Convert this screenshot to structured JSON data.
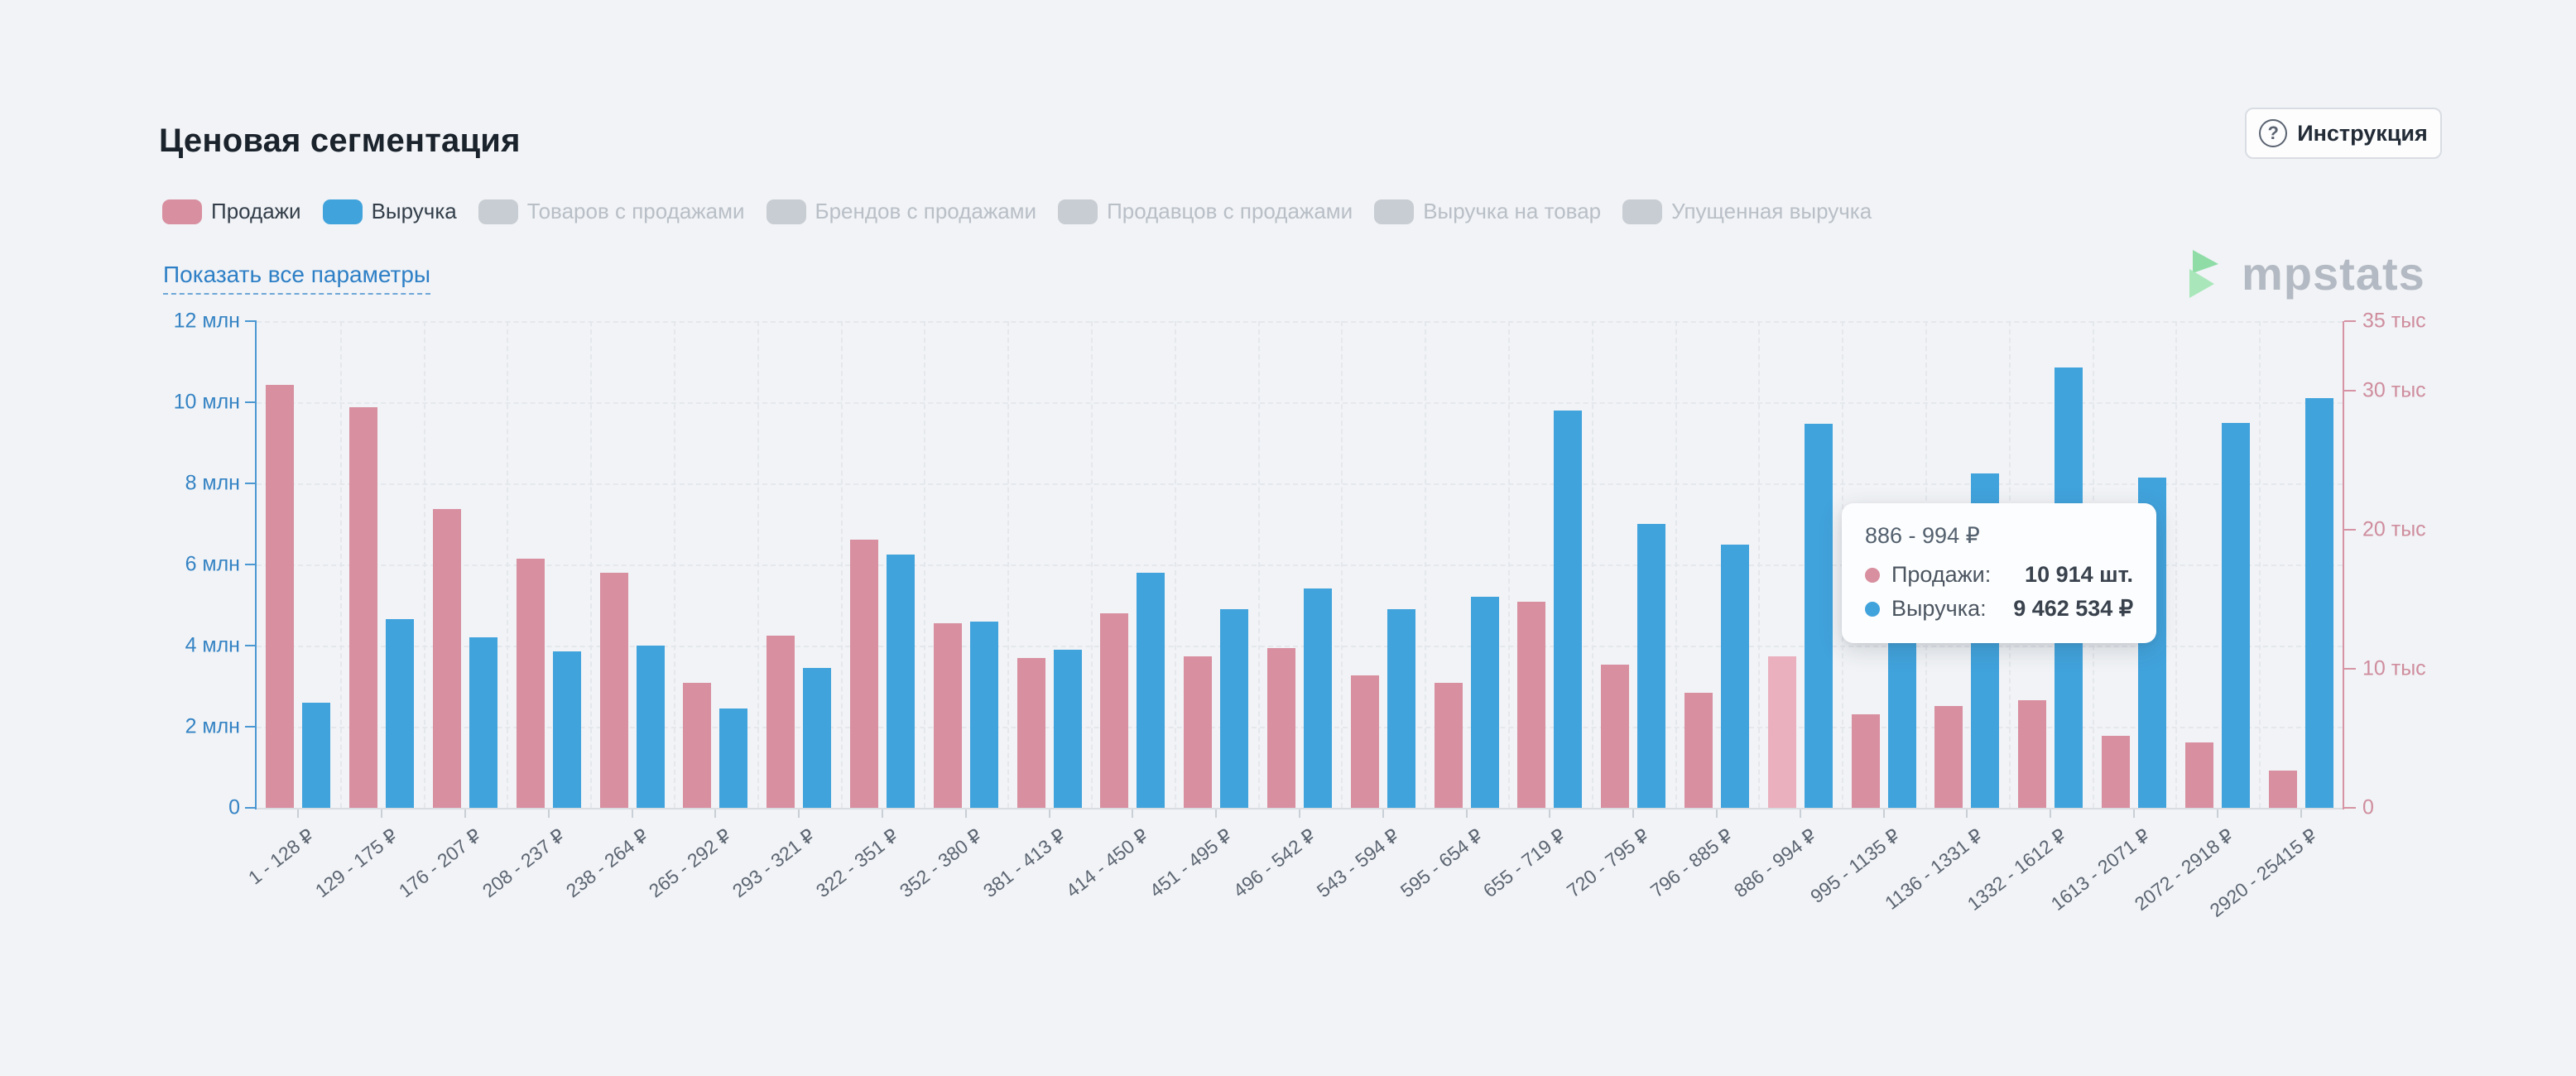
{
  "page": {
    "title": "Ценовая сегментация",
    "instruction_button": "Инструкция",
    "question_glyph": "?",
    "show_all_link": "Показать все параметры",
    "watermark": "mpstats",
    "background": "#f1f3f6"
  },
  "legend": {
    "items": [
      {
        "label": "Продажи",
        "color": "#d88fa0",
        "active": true
      },
      {
        "label": "Выручка",
        "color": "#41a3dc",
        "active": true
      },
      {
        "label": "Товаров с продажами",
        "color": "#c8cdd3",
        "active": false
      },
      {
        "label": "Брендов с продажами",
        "color": "#c8cdd3",
        "active": false
      },
      {
        "label": "Продавцов с продажами",
        "color": "#c8cdd3",
        "active": false
      },
      {
        "label": "Выручка на товар",
        "color": "#c8cdd3",
        "active": false
      },
      {
        "label": "Упущенная выручка",
        "color": "#c8cdd3",
        "active": false
      }
    ]
  },
  "chart_data": {
    "type": "bar",
    "title": "Ценовая сегментация",
    "grid": true,
    "legend_position": "top",
    "categories": [
      "1 - 128 ₽",
      "129 - 175 ₽",
      "176 - 207 ₽",
      "208 - 237 ₽",
      "238 - 264 ₽",
      "265 - 292 ₽",
      "293 - 321 ₽",
      "322 - 351 ₽",
      "352 - 380 ₽",
      "381 - 413 ₽",
      "414 - 450 ₽",
      "451 - 495 ₽",
      "496 - 542 ₽",
      "543 - 594 ₽",
      "595 - 654 ₽",
      "655 - 719 ₽",
      "720 - 795 ₽",
      "796 - 885 ₽",
      "886 - 994 ₽",
      "995 - 1135 ₽",
      "1136 - 1331 ₽",
      "1332 - 1612 ₽",
      "1613 - 2071 ₽",
      "2072 - 2918 ₽",
      "2920 - 25415 ₽"
    ],
    "series": [
      {
        "name": "Продажи",
        "unit": "шт.",
        "axis": "right",
        "color": "#d88fa0",
        "highlight_color": "#eab0be",
        "values": [
          30400,
          28800,
          21500,
          17900,
          16900,
          9000,
          12400,
          19300,
          13300,
          10800,
          14000,
          10900,
          11500,
          9500,
          9000,
          14800,
          10300,
          8300,
          10914,
          6700,
          7300,
          7750,
          5200,
          4700,
          2700
        ]
      },
      {
        "name": "Выручка",
        "unit": "₽",
        "axis": "left",
        "color": "#41a3dc",
        "highlight_color": "#41a3dc",
        "values": [
          2600000,
          4650000,
          4200000,
          3850000,
          4000000,
          2450000,
          3450000,
          6250000,
          4600000,
          3900000,
          5800000,
          4900000,
          5400000,
          4900000,
          5200000,
          9800000,
          7000000,
          6500000,
          9462534,
          7000000,
          8250000,
          10850000,
          8150000,
          9500000,
          10100000
        ]
      }
    ],
    "highlighted_index": 18,
    "left_axis": {
      "title": "Выручка, ₽",
      "max": 12000000,
      "color": "#3583c4",
      "ticks": [
        {
          "label": "12 млн",
          "value": 12000000
        },
        {
          "label": "10 млн",
          "value": 10000000
        },
        {
          "label": "8 млн",
          "value": 8000000
        },
        {
          "label": "6 млн",
          "value": 6000000
        },
        {
          "label": "4 млн",
          "value": 4000000
        },
        {
          "label": "2 млн",
          "value": 2000000
        },
        {
          "label": "0",
          "value": 0
        }
      ]
    },
    "right_axis": {
      "title": "Продажи, шт.",
      "max": 35000,
      "color": "#cf8d9e",
      "ticks": [
        {
          "label": "35 тыс",
          "value": 35000
        },
        {
          "label": "30 тыс",
          "value": 30000
        },
        {
          "label": "20 тыс",
          "value": 20000
        },
        {
          "label": "10 тыс",
          "value": 10000
        },
        {
          "label": "0",
          "value": 0
        }
      ]
    }
  },
  "tooltip": {
    "title": "886 - 994 ₽",
    "rows": [
      {
        "label": "Продажи:",
        "value": "10 914 шт.",
        "color": "#d88fa0"
      },
      {
        "label": "Выручка:",
        "value": "9 462 534 ₽",
        "color": "#41a3dc"
      }
    ]
  }
}
